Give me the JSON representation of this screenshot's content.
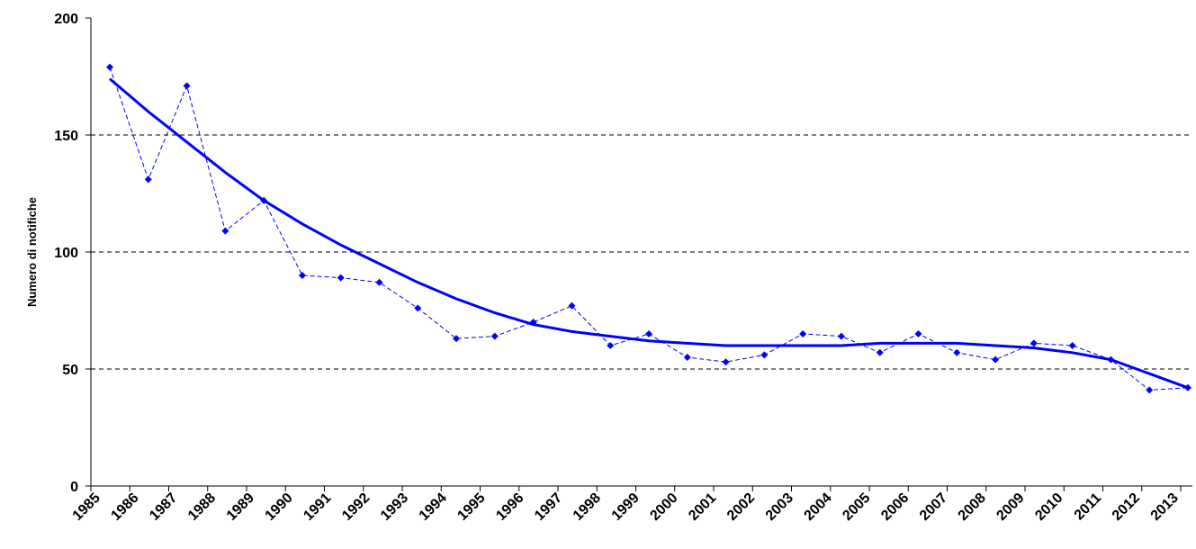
{
  "chart_data": {
    "type": "line",
    "y_label": "Numero di notifiche",
    "categories": [
      "1985",
      "1986",
      "1987",
      "1988",
      "1989",
      "1990",
      "1991",
      "1992",
      "1993",
      "1994",
      "1995",
      "1996",
      "1997",
      "1998",
      "1999",
      "2000",
      "2001",
      "2002",
      "2003",
      "2004",
      "2005",
      "2006",
      "2007",
      "2008",
      "2009",
      "2010",
      "2011",
      "2012",
      "2013"
    ],
    "series": [
      {
        "color": "#0000ff",
        "style": "dashed",
        "marker": true,
        "values": [
          179,
          131,
          171,
          109,
          122,
          90,
          89,
          87,
          76,
          63,
          64,
          70,
          77,
          60,
          65,
          55,
          53,
          56,
          65,
          64,
          57,
          65,
          57,
          54,
          61,
          60,
          54,
          41,
          42
        ]
      },
      {
        "color": "#0000ff",
        "style": "solid",
        "marker": false,
        "values": [
          174,
          160,
          147,
          134,
          122,
          112,
          103,
          95,
          87,
          80,
          74,
          69,
          66,
          64,
          62,
          61,
          60,
          60,
          60,
          60,
          61,
          61,
          61,
          60,
          59,
          57,
          54,
          48,
          42
        ]
      }
    ],
    "ylim": [
      0,
      200
    ],
    "yticks": [
      0,
      50,
      100,
      150,
      200
    ],
    "grid": true
  }
}
